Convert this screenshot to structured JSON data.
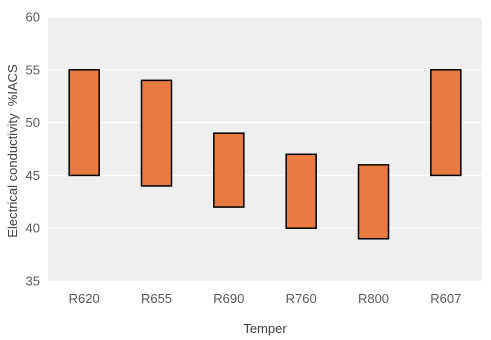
{
  "chart_data": {
    "type": "bar",
    "subtype": "floating-range",
    "title": "",
    "xlabel": "Temper",
    "ylabel": "Electrical conductivity  %IACS",
    "categories": [
      "R620",
      "R655",
      "R690",
      "R760",
      "R800",
      "R607"
    ],
    "ranges": [
      {
        "low": 45,
        "high": 55
      },
      {
        "low": 44,
        "high": 54
      },
      {
        "low": 42,
        "high": 49
      },
      {
        "low": 40,
        "high": 47
      },
      {
        "low": 39,
        "high": 46
      },
      {
        "low": 45,
        "high": 55
      }
    ],
    "ylim": [
      35,
      60
    ],
    "yticks": [
      "35",
      "40",
      "45",
      "50",
      "55",
      "60"
    ],
    "grid": true,
    "colors": {
      "bar_fill": "#E97B42",
      "bar_stroke": "#000000",
      "plot_bg": "#EFEFEF",
      "gridline": "#FFFFFF"
    }
  }
}
